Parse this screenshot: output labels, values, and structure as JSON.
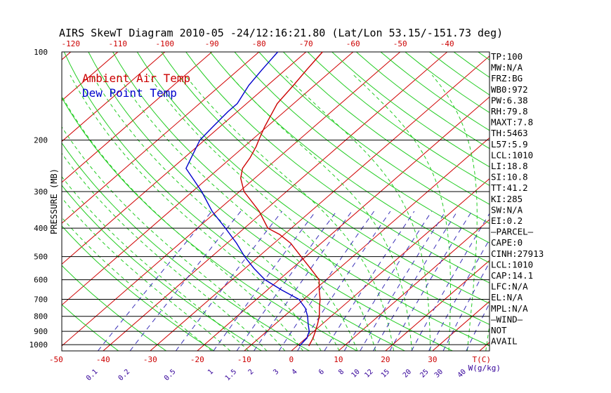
{
  "chart_data": {
    "type": "line",
    "title": "AIRS SkewT Diagram 2010-05 -24/12:16:21.80 (Lat/Lon 53.15/-151.73 deg)",
    "ylabel": "PRESSURE (MB)",
    "xlabel": "T(C)",
    "mixing_ratio_unit": "W(g/kg)",
    "pressure_ticks": [
      100,
      200,
      300,
      400,
      500,
      600,
      700,
      800,
      900,
      1000
    ],
    "top_temp_ticks": [
      -120,
      -110,
      -100,
      -90,
      -80,
      -70,
      -60,
      -50,
      -40
    ],
    "bottom_temp_ticks": [
      -50,
      -40,
      -30,
      -20,
      -10,
      0,
      10,
      20,
      30
    ],
    "mixing_ratio_ticks": [
      "0.1",
      "0.2",
      "0.5",
      "1",
      "1.5",
      "2",
      "3",
      "4",
      "6",
      "8",
      "10",
      "12",
      "15",
      "20",
      "25",
      "30",
      "40"
    ],
    "legend": [
      {
        "name": "Ambient Air Temp",
        "color": "#cc0000"
      },
      {
        "name": "Dew Point Temp",
        "color": "#0000cc"
      }
    ],
    "series": [
      {
        "name": "Ambient Air Temp",
        "color": "#cc0000",
        "points": [
          {
            "p": 1010,
            "t": 2.5
          },
          {
            "p": 950,
            "t": 1.5
          },
          {
            "p": 900,
            "t": 0.3
          },
          {
            "p": 850,
            "t": -1
          },
          {
            "p": 800,
            "t": -2.5
          },
          {
            "p": 750,
            "t": -4.5
          },
          {
            "p": 700,
            "t": -6.5
          },
          {
            "p": 650,
            "t": -9
          },
          {
            "p": 600,
            "t": -11.5
          },
          {
            "p": 550,
            "t": -16
          },
          {
            "p": 500,
            "t": -21
          },
          {
            "p": 450,
            "t": -26.5
          },
          {
            "p": 420,
            "t": -31
          },
          {
            "p": 400,
            "t": -35
          },
          {
            "p": 350,
            "t": -41
          },
          {
            "p": 300,
            "t": -49
          },
          {
            "p": 270,
            "t": -53
          },
          {
            "p": 250,
            "t": -55
          },
          {
            "p": 230,
            "t": -56
          },
          {
            "p": 210,
            "t": -57.5
          },
          {
            "p": 200,
            "t": -58.5
          },
          {
            "p": 180,
            "t": -60.5
          },
          {
            "p": 150,
            "t": -63.5
          },
          {
            "p": 130,
            "t": -64.5
          },
          {
            "p": 115,
            "t": -65.5
          },
          {
            "p": 100,
            "t": -66.5
          }
        ]
      },
      {
        "name": "Dew Point Temp",
        "color": "#0000cc",
        "points": [
          {
            "p": 1010,
            "t": 0.5
          },
          {
            "p": 950,
            "t": 0.2
          },
          {
            "p": 900,
            "t": -1
          },
          {
            "p": 850,
            "t": -3
          },
          {
            "p": 800,
            "t": -5
          },
          {
            "p": 750,
            "t": -7.5
          },
          {
            "p": 700,
            "t": -11
          },
          {
            "p": 650,
            "t": -17
          },
          {
            "p": 600,
            "t": -23
          },
          {
            "p": 550,
            "t": -28
          },
          {
            "p": 500,
            "t": -33
          },
          {
            "p": 450,
            "t": -38
          },
          {
            "p": 400,
            "t": -44
          },
          {
            "p": 350,
            "t": -51
          },
          {
            "p": 300,
            "t": -58
          },
          {
            "p": 250,
            "t": -67
          },
          {
            "p": 200,
            "t": -71
          },
          {
            "p": 180,
            "t": -71.5
          },
          {
            "p": 160,
            "t": -72
          },
          {
            "p": 150,
            "t": -72
          },
          {
            "p": 130,
            "t": -74
          },
          {
            "p": 115,
            "t": -75
          },
          {
            "p": 100,
            "t": -76
          }
        ]
      }
    ],
    "grid": true,
    "skewed_isotherms": true,
    "dry_adiabats": true,
    "moist_adiabats": true,
    "mixing_ratio_lines": true
  },
  "indices": [
    "TP:100",
    "MW:N/A",
    "FRZ:BG",
    "WB0:972",
    "PW:6.38",
    "RH:79.8",
    "MAXT:7.8",
    "TH:5463",
    "L57:5.9",
    "LCL:1010",
    "LI:18.8",
    "SI:10.8",
    "TT:41.2",
    "KI:285",
    "SW:N/A",
    "EI:0.2",
    "—PARCEL—",
    "CAPE:0",
    "CINH:27913",
    "LCL:1010",
    "CAP:14.1",
    "LFC:N/A",
    "EL:N/A",
    "MPL:N/A",
    "—WIND—",
    "NOT",
    "AVAIL"
  ],
  "colors": {
    "isotherm": "#d00000",
    "dry_adiabat": "#22cc22",
    "moist_adiabat": "#22cc22",
    "mixing_ratio": "#3a2fb8",
    "isobar": "#000000"
  }
}
